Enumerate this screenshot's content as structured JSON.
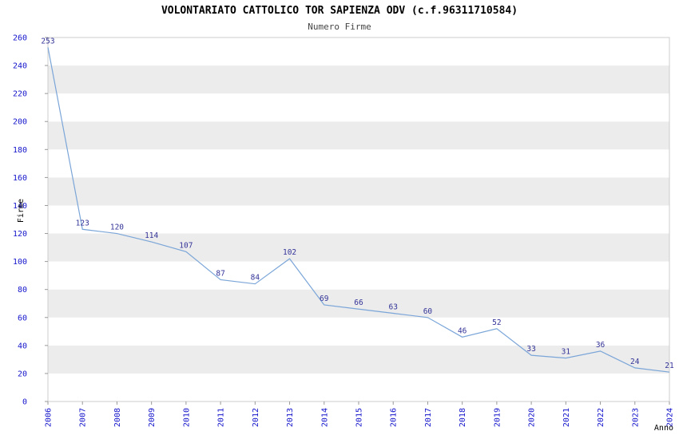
{
  "chart_data": {
    "type": "line",
    "title": "VOLONTARIATO CATTOLICO TOR SAPIENZA ODV (c.f.96311710584)",
    "subtitle": "Numero Firme",
    "xlabel": "Anno",
    "ylabel": "Firme",
    "categories": [
      "2006",
      "2007",
      "2008",
      "2009",
      "2010",
      "2011",
      "2012",
      "2013",
      "2014",
      "2015",
      "2016",
      "2017",
      "2018",
      "2019",
      "2020",
      "2021",
      "2022",
      "2023",
      "2024"
    ],
    "values": [
      253,
      123,
      120,
      114,
      107,
      87,
      84,
      102,
      69,
      66,
      63,
      60,
      46,
      52,
      33,
      31,
      36,
      24,
      21
    ],
    "ylim": [
      0,
      260
    ],
    "ytick_step": 20,
    "grid": "horizontal-alternating-bands",
    "legend": "none",
    "colors": {
      "line": "#7aa5d8",
      "point_label": "#333399",
      "tick_label": "#1414cc",
      "band": "#ececec",
      "band_alt": "#ffffff",
      "plot_border": "#cccccc",
      "tick_mark": "#999999",
      "title": "#000000",
      "subtitle": "#444444",
      "axis_label": "#000000"
    }
  }
}
